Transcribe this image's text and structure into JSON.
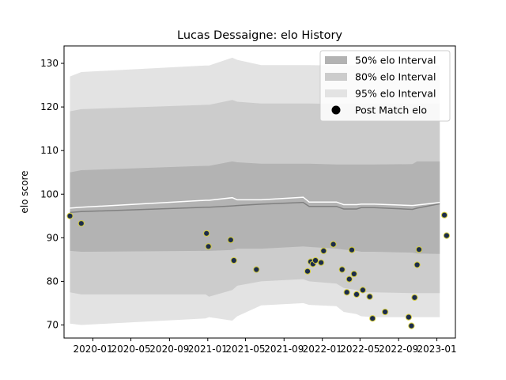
{
  "chart_data": {
    "type": "line",
    "title": "Lucas Dessaigne: elo History",
    "xlabel": "",
    "ylabel": "elo score",
    "xlim": [
      "2019-10-01",
      "2023-03-01"
    ],
    "ylim": [
      67,
      134
    ],
    "x_ticks": [
      {
        "date": "2020-01-01",
        "label": "2020-01"
      },
      {
        "date": "2020-05-01",
        "label": "2020-05"
      },
      {
        "date": "2020-09-01",
        "label": "2020-09"
      },
      {
        "date": "2021-01-01",
        "label": "2021-01"
      },
      {
        "date": "2021-05-01",
        "label": "2021-05"
      },
      {
        "date": "2021-09-01",
        "label": "2021-09"
      },
      {
        "date": "2022-01-01",
        "label": "2022-01"
      },
      {
        "date": "2022-05-01",
        "label": "2022-05"
      },
      {
        "date": "2022-09-01",
        "label": "2022-09"
      },
      {
        "date": "2023-01-01",
        "label": "2023-01"
      }
    ],
    "y_ticks": [
      70,
      80,
      90,
      100,
      110,
      120,
      130
    ],
    "grid": false,
    "legend": {
      "position": "top-right",
      "entries": [
        {
          "label": "50% elo Interval",
          "kind": "band",
          "color": "#b3b3b3"
        },
        {
          "label": "80% elo Interval",
          "kind": "band",
          "color": "#cccccc"
        },
        {
          "label": "95% elo Interval",
          "kind": "band",
          "color": "#e3e3e3"
        },
        {
          "label": "Post Match elo",
          "kind": "marker",
          "color": "#000000"
        }
      ]
    },
    "colors": {
      "band95": "#e3e3e3",
      "band80": "#cccccc",
      "band50": "#b3b3b3",
      "mean_line": "#808080",
      "upper_line": "#ffffff",
      "marker_fill": "#1c2c4c",
      "marker_edge": "#d4cc3c"
    },
    "series": [
      {
        "label": "95% elo Interval",
        "kind": "band",
        "color": "#e3e3e3",
        "x": [
          "2019-10-20",
          "2019-11-25",
          "2020-12-25",
          "2021-01-05",
          "2021-03-20",
          "2021-04-05",
          "2021-06-20",
          "2021-11-01",
          "2021-11-20",
          "2022-02-15",
          "2022-03-10",
          "2022-04-20",
          "2022-05-05",
          "2022-06-15",
          "2022-10-15",
          "2022-10-30",
          "2023-01-10"
        ],
        "upper": [
          127,
          128,
          129.5,
          129.5,
          131.3,
          130.8,
          129.6,
          129.6,
          129.6,
          129.5,
          129.5,
          129.5,
          129.5,
          129.5,
          129.5,
          129.5,
          129.5
        ],
        "lower": [
          70.3,
          70,
          71.5,
          71.8,
          71,
          72,
          74.5,
          75,
          74.6,
          74.3,
          73,
          72.5,
          72,
          71.8,
          71.8,
          71.8,
          71.8
        ]
      },
      {
        "label": "80% elo Interval",
        "kind": "band",
        "color": "#cccccc",
        "x": [
          "2019-10-20",
          "2019-11-25",
          "2020-12-25",
          "2021-01-05",
          "2021-03-20",
          "2021-04-05",
          "2021-06-20",
          "2021-11-01",
          "2021-11-20",
          "2022-02-15",
          "2022-03-10",
          "2022-04-20",
          "2022-05-05",
          "2022-06-15",
          "2022-10-15",
          "2022-10-30",
          "2023-01-10"
        ],
        "upper": [
          119,
          119.5,
          120.5,
          120.5,
          121.6,
          121.2,
          120.8,
          120.8,
          120.8,
          120.7,
          120.7,
          120.7,
          120.7,
          120.7,
          120.7,
          120.7,
          120.7
        ],
        "lower": [
          77.5,
          77,
          77,
          76.5,
          78,
          79,
          80,
          80.5,
          80,
          79.5,
          78.5,
          78,
          77.5,
          77.5,
          77.3,
          77.3,
          77.3
        ]
      },
      {
        "label": "50% elo Interval",
        "kind": "band",
        "color": "#b3b3b3",
        "x": [
          "2019-10-20",
          "2019-11-25",
          "2020-12-25",
          "2021-01-05",
          "2021-03-20",
          "2021-04-05",
          "2021-06-20",
          "2021-11-01",
          "2021-11-20",
          "2022-02-15",
          "2022-03-10",
          "2022-04-20",
          "2022-05-05",
          "2022-06-15",
          "2022-10-15",
          "2022-10-30",
          "2023-01-10"
        ],
        "upper": [
          105,
          105.5,
          106.5,
          106.5,
          107.5,
          107.3,
          107,
          107,
          107,
          106.8,
          106.8,
          106.8,
          106.8,
          106.8,
          106.9,
          107.5,
          107.5
        ],
        "lower": [
          87,
          86.8,
          87,
          87,
          87.2,
          87.5,
          87.5,
          88,
          87.9,
          87.5,
          87.3,
          87,
          86.8,
          86.8,
          86.6,
          86.4,
          86.3
        ]
      },
      {
        "label": "mean",
        "kind": "line",
        "color": "#808080",
        "x": [
          "2019-10-20",
          "2019-11-25",
          "2020-12-25",
          "2021-01-05",
          "2021-03-20",
          "2021-04-05",
          "2021-06-20",
          "2021-11-01",
          "2021-11-20",
          "2022-02-15",
          "2022-03-10",
          "2022-04-20",
          "2022-05-05",
          "2022-06-15",
          "2022-10-15",
          "2022-10-30",
          "2023-01-10"
        ],
        "y": [
          95.8,
          96,
          97,
          97,
          97.3,
          97.4,
          97.7,
          98.1,
          97.2,
          97.2,
          96.6,
          96.6,
          96.9,
          96.9,
          96.5,
          96.8,
          97.8
        ]
      },
      {
        "label": "upper",
        "kind": "line",
        "color": "#ffffff",
        "x": [
          "2019-10-20",
          "2019-11-25",
          "2020-12-25",
          "2021-01-05",
          "2021-03-20",
          "2021-04-05",
          "2021-06-20",
          "2021-11-01",
          "2021-11-20",
          "2022-02-15",
          "2022-03-10",
          "2022-04-20",
          "2022-05-05",
          "2022-06-15",
          "2022-10-15",
          "2022-10-30",
          "2023-01-10"
        ],
        "y": [
          96.8,
          97,
          98.6,
          98.6,
          99.2,
          98.7,
          98.7,
          99.3,
          98.2,
          98.2,
          97.6,
          97.6,
          97.7,
          97.7,
          97.4,
          97.5,
          98.1
        ]
      }
    ],
    "points": [
      {
        "x": "2019-10-20",
        "y": 95
      },
      {
        "x": "2019-11-25",
        "y": 93.3
      },
      {
        "x": "2020-12-28",
        "y": 91
      },
      {
        "x": "2021-01-03",
        "y": 88
      },
      {
        "x": "2021-03-15",
        "y": 89.5
      },
      {
        "x": "2021-03-25",
        "y": 84.8
      },
      {
        "x": "2021-06-05",
        "y": 82.7
      },
      {
        "x": "2021-11-15",
        "y": 82.3
      },
      {
        "x": "2021-11-25",
        "y": 84.5
      },
      {
        "x": "2021-12-02",
        "y": 84
      },
      {
        "x": "2021-12-10",
        "y": 84.8
      },
      {
        "x": "2021-12-28",
        "y": 84.3
      },
      {
        "x": "2022-01-05",
        "y": 87
      },
      {
        "x": "2022-02-05",
        "y": 88.5
      },
      {
        "x": "2022-03-05",
        "y": 82.7
      },
      {
        "x": "2022-03-20",
        "y": 77.5
      },
      {
        "x": "2022-03-28",
        "y": 80.5
      },
      {
        "x": "2022-04-05",
        "y": 87.2
      },
      {
        "x": "2022-04-12",
        "y": 81.7
      },
      {
        "x": "2022-04-20",
        "y": 77
      },
      {
        "x": "2022-05-10",
        "y": 78
      },
      {
        "x": "2022-06-01",
        "y": 76.5
      },
      {
        "x": "2022-06-10",
        "y": 71.5
      },
      {
        "x": "2022-07-20",
        "y": 73
      },
      {
        "x": "2022-10-03",
        "y": 71.8
      },
      {
        "x": "2022-10-12",
        "y": 69.8
      },
      {
        "x": "2022-10-22",
        "y": 76.3
      },
      {
        "x": "2022-10-30",
        "y": 83.8
      },
      {
        "x": "2022-11-05",
        "y": 87.3
      },
      {
        "x": "2023-01-25",
        "y": 95.2
      },
      {
        "x": "2023-02-01",
        "y": 90.5
      }
    ]
  }
}
